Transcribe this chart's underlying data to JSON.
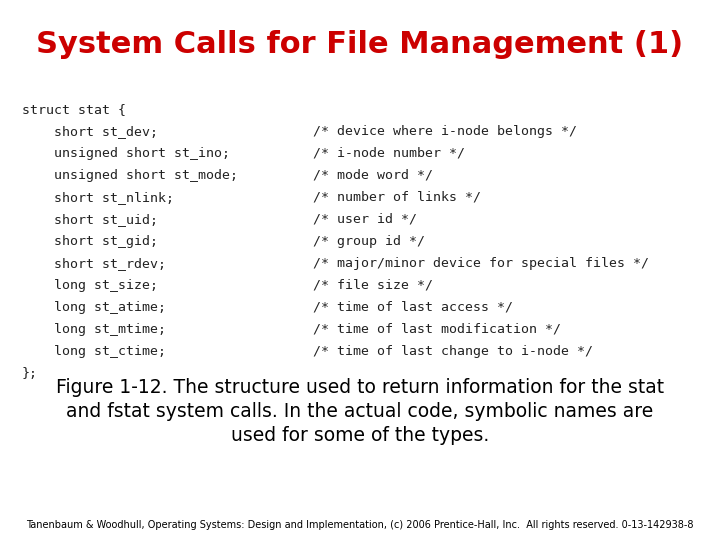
{
  "title": "System Calls for File Management (1)",
  "title_color": "#cc0000",
  "title_fontsize": 22,
  "bg_color": "#ffffff",
  "code_lines": [
    "struct stat {",
    "    short st_dev;",
    "    unsigned short st_ino;",
    "    unsigned short st_mode;",
    "    short st_nlink;",
    "    short st_uid;",
    "    short st_gid;",
    "    short st_rdev;",
    "    long st_size;",
    "    long st_atime;",
    "    long st_mtime;",
    "    long st_ctime;",
    "};"
  ],
  "comments": [
    "",
    "/* device where i-node belongs */",
    "/* i-node number */",
    "/* mode word */",
    "/* number of links */",
    "/* user id */",
    "/* group id */",
    "/* major/minor device for special files */",
    "/* file size */",
    "/* time of last access */",
    "/* time of last modification */",
    "/* time of last change to i-node */",
    ""
  ],
  "caption_line1": "Figure 1-12. The structure used to return information for the stat",
  "caption_line2": "and fstat system calls. In the actual code, symbolic names are",
  "caption_line3": "used for some of the types.",
  "caption_fontsize": 13.5,
  "footer": "Tanenbaum & Woodhull, Operating Systems: Design and Implementation, (c) 2006 Prentice-Hall, Inc.  All rights reserved. 0-13-142938-8",
  "footer_fontsize": 7,
  "code_fontsize": 9.5,
  "code_color": "#222222",
  "code_font": "monospace"
}
